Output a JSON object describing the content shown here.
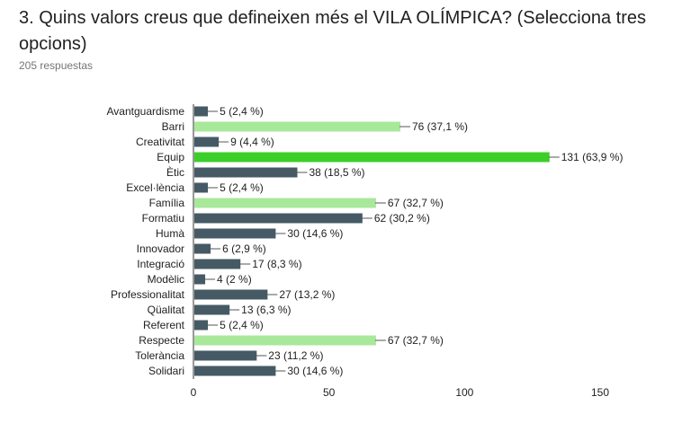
{
  "question": {
    "title": "3. Quins valors creus que defineixen més el VILA OLÍMPICA? (Selecciona tres opcions)",
    "responses": "205 respuestas"
  },
  "colors": {
    "default_bar": "#455a64",
    "highlight_bar": "#3ccf2a",
    "light_bar": "#a8e89a",
    "axis_text": "#212121",
    "grid": "#d9d9d9"
  },
  "chart_data": {
    "type": "bar",
    "orientation": "horizontal",
    "categories": [
      "Avantguardisme",
      "Barri",
      "Creativitat",
      "Equip",
      "Ètic",
      "Excel·lència",
      "Família",
      "Formatiu",
      "Humà",
      "Innovador",
      "Integració",
      "Modèlic",
      "Professionalitat",
      "Qüalitat",
      "Referent",
      "Respecte",
      "Tolerància",
      "Solidari"
    ],
    "values": [
      5,
      76,
      9,
      131,
      38,
      5,
      67,
      62,
      30,
      6,
      17,
      4,
      27,
      13,
      5,
      67,
      23,
      30
    ],
    "data_labels": [
      "5 (2,4 %)",
      "76 (37,1 %)",
      "9 (4,4 %)",
      "131 (63,9 %)",
      "38 (18,5 %)",
      "5 (2,4 %)",
      "67 (32,7 %)",
      "62 (30,2 %)",
      "30 (14,6 %)",
      "6 (2,9 %)",
      "17 (8,3 %)",
      "4 (2 %)",
      "27 (13,2 %)",
      "13 (6,3 %)",
      "5 (2,4 %)",
      "67 (32,7 %)",
      "23 (11,2 %)",
      "30 (14,6 %)"
    ],
    "bar_colors": [
      "default",
      "light-green",
      "default",
      "green",
      "default",
      "default",
      "light-green",
      "default",
      "default",
      "default",
      "default",
      "default",
      "default",
      "default",
      "default",
      "light-green",
      "default",
      "default"
    ],
    "xticks": [
      "0",
      "50",
      "100",
      "150"
    ],
    "xlim": [
      0,
      150
    ],
    "grid": false
  }
}
